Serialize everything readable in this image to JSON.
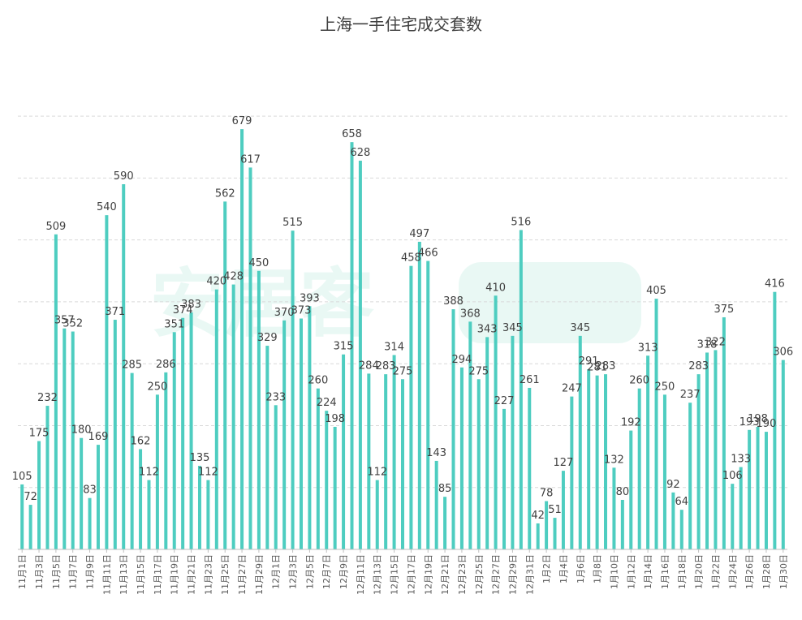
{
  "chart_data": {
    "type": "bar",
    "title": "上海一手住宅成交套数",
    "xlabel": "",
    "ylabel": "",
    "ylim": [
      0,
      700
    ],
    "grid": true,
    "color": "#4ecdc0",
    "categories": [
      "11月1日",
      "11月2日",
      "11月3日",
      "11月4日",
      "11月5日",
      "11月6日",
      "11月7日",
      "11月8日",
      "11月9日",
      "11月10日",
      "11月11日",
      "11月12日",
      "11月13日",
      "11月14日",
      "11月15日",
      "11月16日",
      "11月17日",
      "11月18日",
      "11月19日",
      "11月20日",
      "11月21日",
      "11月22日",
      "11月23日",
      "11月24日",
      "11月25日",
      "11月26日",
      "11月27日",
      "11月28日",
      "11月29日",
      "11月30日",
      "12月1日",
      "12月2日",
      "12月3日",
      "12月4日",
      "12月5日",
      "12月6日",
      "12月7日",
      "12月8日",
      "12月9日",
      "12月10日",
      "12月11日",
      "12月12日",
      "12月13日",
      "12月14日",
      "12月15日",
      "12月16日",
      "12月17日",
      "12月18日",
      "12月19日",
      "12月20日",
      "12月21日",
      "12月22日",
      "12月23日",
      "12月24日",
      "12月25日",
      "12月26日",
      "12月27日",
      "12月28日",
      "12月29日",
      "12月30日",
      "12月31日",
      "1月1日",
      "1月2日",
      "1月3日",
      "1月4日",
      "1月5日",
      "1月6日",
      "1月7日",
      "1月8日",
      "1月9日",
      "1月10日",
      "1月11日",
      "1月12日",
      "1月13日",
      "1月14日",
      "1月15日",
      "1月16日",
      "1月17日",
      "1月18日",
      "1月19日",
      "1月20日",
      "1月21日",
      "1月22日",
      "1月23日",
      "1月24日",
      "1月25日",
      "1月26日",
      "1月27日",
      "1月28日",
      "1月29日",
      "1月30日"
    ],
    "values": [
      105,
      72,
      175,
      232,
      509,
      357,
      352,
      180,
      83,
      169,
      540,
      371,
      590,
      285,
      162,
      112,
      250,
      286,
      351,
      374,
      383,
      135,
      112,
      420,
      562,
      428,
      679,
      617,
      450,
      329,
      233,
      370,
      515,
      373,
      393,
      260,
      224,
      198,
      315,
      658,
      628,
      284,
      112,
      283,
      314,
      275,
      458,
      497,
      466,
      143,
      85,
      388,
      294,
      368,
      275,
      343,
      410,
      227,
      345,
      516,
      261,
      42,
      78,
      51,
      127,
      247,
      345,
      291,
      281,
      283,
      132,
      80,
      192,
      260,
      313,
      405,
      250,
      92,
      64,
      237,
      283,
      318,
      322,
      375,
      106,
      133,
      193,
      198,
      190,
      416,
      306
    ],
    "tick_labels": [
      "11月1日",
      "11月3日",
      "11月5日",
      "11月7日",
      "11月9日",
      "11月11日",
      "11月13日",
      "11月15日",
      "11月17日",
      "11月19日",
      "11月21日",
      "11月23日",
      "11月25日",
      "11月27日",
      "11月29日",
      "12月1日",
      "12月3日",
      "12月5日",
      "12月7日",
      "12月9日",
      "12月11日",
      "12月13日",
      "12月15日",
      "12月17日",
      "12月19日",
      "12月21日",
      "12月23日",
      "12月25日",
      "12月27日",
      "12月29日",
      "12月31日",
      "1月2日",
      "1月4日",
      "1月6日",
      "1月8日",
      "1月10日",
      "1月12日",
      "1月14日",
      "1月16日",
      "1月18日",
      "1月20日",
      "1月22日",
      "1月24日",
      "1月26日",
      "1月28日",
      "1月30日"
    ]
  }
}
